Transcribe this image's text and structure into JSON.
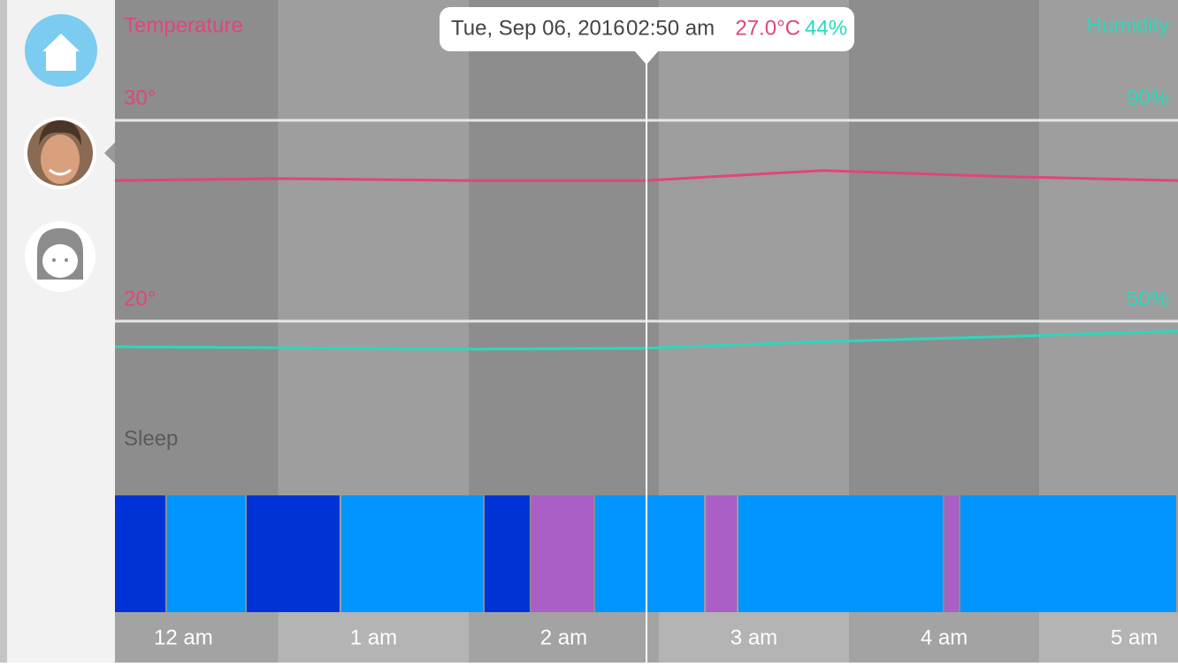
{
  "tooltip": {
    "date": "Tue, Sep 06, 2016",
    "time": "02:50 am",
    "temperature": "27.0°C",
    "humidity": "44%"
  },
  "chart_data": {
    "type": "line",
    "xlim": [
      0.14,
      5.73
    ],
    "xticks": [
      {
        "value": 0,
        "label": "12 am"
      },
      {
        "value": 1,
        "label": "1 am"
      },
      {
        "value": 2,
        "label": "2 am"
      },
      {
        "value": 3,
        "label": "3 am"
      },
      {
        "value": 4,
        "label": "4 am"
      },
      {
        "value": 5,
        "label": "5 am"
      }
    ],
    "ylim": [
      20,
      30
    ],
    "yticks": [
      {
        "value": 20,
        "label": "20°"
      },
      {
        "value": 30,
        "label": "30°"
      }
    ],
    "y2lim": [
      50,
      90
    ],
    "y2ticks": [
      {
        "value": 50,
        "label": "50%"
      },
      {
        "value": 90,
        "label": "90%"
      }
    ],
    "grid": true,
    "x": [
      0.14,
      1,
      2,
      2.93,
      3.86,
      4.8,
      5.73
    ],
    "series": [
      {
        "name": "Temperature",
        "color": "#e0457f",
        "values": [
          27.0,
          27.1,
          27.0,
          27.0,
          27.5,
          27.2,
          27.0
        ]
      },
      {
        "name": "Humidity",
        "color": "#2dd8bb",
        "axis": "y2",
        "values": [
          44.9,
          44.7,
          44.4,
          44.6,
          45.9,
          46.9,
          48.0
        ]
      }
    ],
    "sleep": {
      "name": "Sleep",
      "segments": [
        {
          "start": 0.14,
          "end": 0.414,
          "color": "#0033d6"
        },
        {
          "start": 0.414,
          "end": 0.833,
          "color": "#0095ff"
        },
        {
          "start": 0.833,
          "end": 1.33,
          "color": "#0033d6"
        },
        {
          "start": 1.33,
          "end": 2.084,
          "color": "#0095ff"
        },
        {
          "start": 2.084,
          "end": 2.33,
          "color": "#0033d6"
        },
        {
          "start": 2.33,
          "end": 2.665,
          "color": "#aa5fc4"
        },
        {
          "start": 2.665,
          "end": 3.247,
          "color": "#0095ff"
        },
        {
          "start": 3.247,
          "end": 3.419,
          "color": "#aa5fc4"
        },
        {
          "start": 3.419,
          "end": 4.502,
          "color": "#0095ff"
        },
        {
          "start": 4.502,
          "end": 4.586,
          "color": "#aa5fc4"
        },
        {
          "start": 4.586,
          "end": 5.73,
          "color": "#0095ff"
        }
      ]
    }
  }
}
